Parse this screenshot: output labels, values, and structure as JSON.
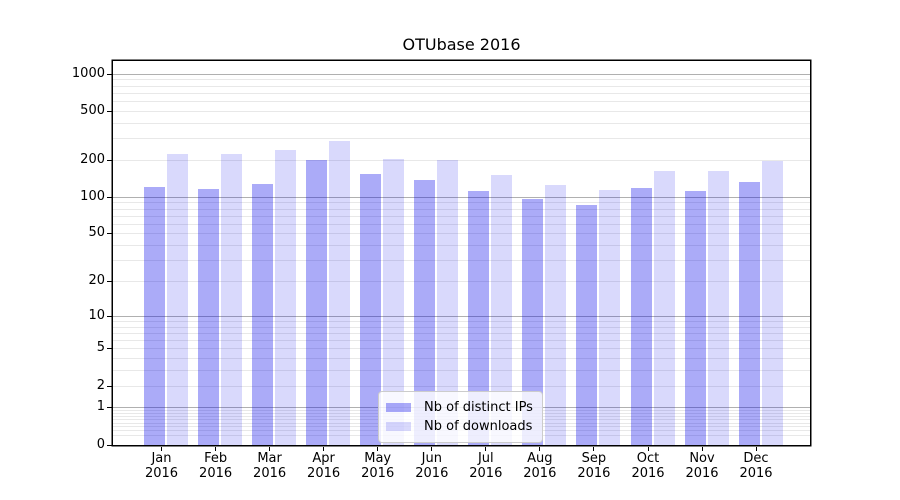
{
  "chart_data": {
    "type": "bar",
    "title": "OTUbase 2016",
    "categories": [
      "Jan",
      "Feb",
      "Mar",
      "Apr",
      "May",
      "Jun",
      "Jul",
      "Aug",
      "Sep",
      "Oct",
      "Nov",
      "Dec"
    ],
    "x_year": "2016",
    "series": [
      {
        "key": "distinct-ips",
        "name": "Nb of distinct IPs",
        "color": "rgba(0,0,235,0.33)",
        "values": [
          122,
          117,
          128,
          201,
          156,
          138,
          113,
          97,
          87,
          119,
          112,
          134
        ]
      },
      {
        "key": "downloads",
        "name": "Nb of downloads",
        "color": "rgba(0,0,235,0.15)",
        "values": [
          227,
          224,
          245,
          288,
          206,
          201,
          152,
          127,
          114,
          165,
          163,
          196
        ]
      }
    ],
    "y_scale": "log10(value+1)",
    "y_ticks": [
      0,
      1,
      2,
      5,
      10,
      20,
      50,
      100,
      200,
      500,
      1000
    ],
    "y_major_gridlines": [
      1,
      10,
      100,
      1000
    ],
    "ylim": [
      0,
      1250
    ],
    "grid": {
      "major_color": "#b0b0b0",
      "minor_color": "#e8e8e8"
    },
    "legend_position": "lower center"
  }
}
